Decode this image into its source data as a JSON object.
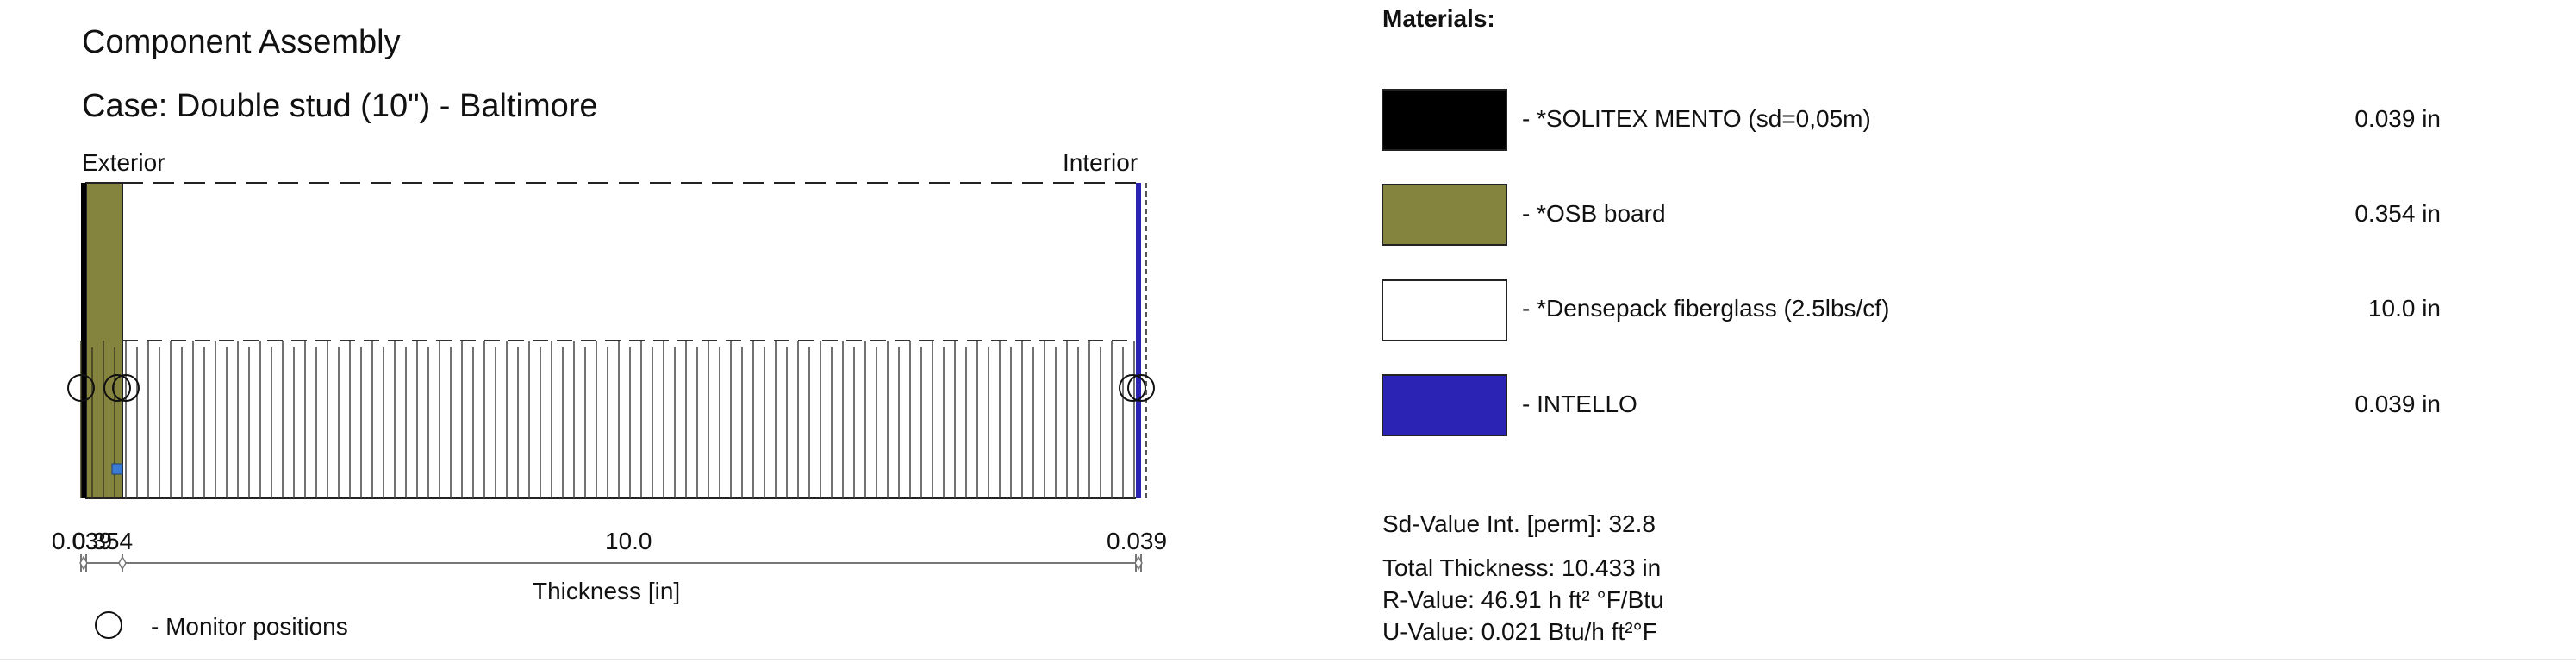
{
  "title": "Component Assembly",
  "case": "Case: Double stud (10\") - Baltimore",
  "side_labels": {
    "exterior": "Exterior",
    "interior": "Interior"
  },
  "axis": {
    "label": "Thickness [in]",
    "tick_labels": [
      "0.039",
      "0.354",
      "10.0",
      "0.039"
    ]
  },
  "legend": {
    "monitor_label": "- Monitor positions"
  },
  "materials": {
    "heading": "Materials:",
    "items": [
      {
        "name": "- *SOLITEX MENTO (sd=0,05m)",
        "thickness": "0.039 in",
        "color": "#000000"
      },
      {
        "name": "- *OSB board",
        "thickness": "0.354 in",
        "color": "#85843e"
      },
      {
        "name": "- *Densepack fiberglass (2.5lbs/cf)",
        "thickness": "10.0 in",
        "color": "#ffffff"
      },
      {
        "name": "- INTELLO",
        "thickness": "0.039 in",
        "color": "#2a23b3"
      }
    ]
  },
  "summary": {
    "sd_value": "Sd-Value Int. [perm]: 32.8",
    "total_thickness": "Total Thickness: 10.433 in",
    "r_value": "R-Value: 46.91 h ft² °F/Btu",
    "u_value": "U-Value: 0.021 Btu/h ft²°F"
  }
}
